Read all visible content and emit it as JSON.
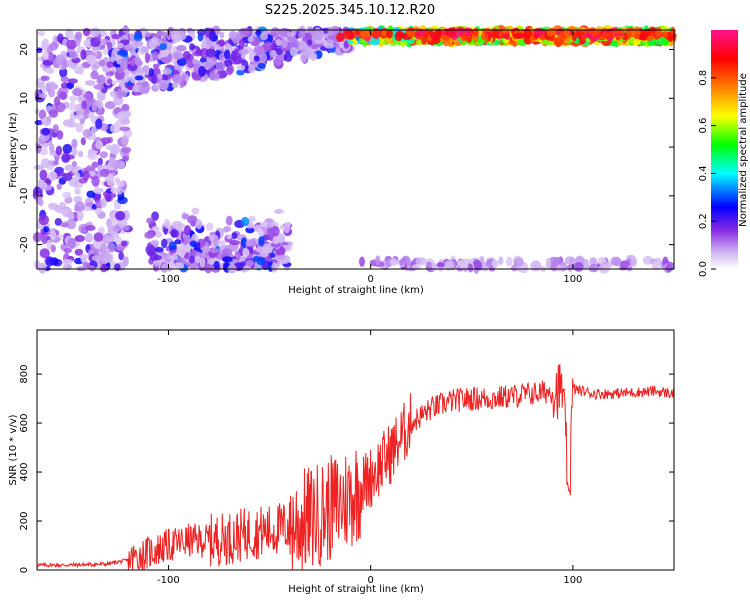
{
  "figure_title": "S225.2025.345.10.12.R20",
  "chart_data": [
    {
      "type": "heatmap",
      "title": "",
      "xlabel": "Height of straight line (km)",
      "ylabel": "Frequency (Hz)",
      "xlim": [
        -165,
        150
      ],
      "ylim": [
        -25,
        24
      ],
      "xticks": [
        -100,
        0,
        100
      ],
      "yticks": [
        -20,
        -10,
        0,
        10,
        20
      ],
      "colorbar": {
        "label": "Normalized spectral amplitude",
        "range": [
          0,
          1
        ],
        "ticks": [
          0.0,
          0.2,
          0.4,
          0.6,
          0.8
        ],
        "tick_labels": [
          "0.0",
          "0.2",
          "0.4",
          "0.6",
          "0.8"
        ],
        "colormap": [
          "#ffffff",
          "#8a2be2",
          "#0000ff",
          "#00ffff",
          "#00ff00",
          "#ffff00",
          "#ff7f00",
          "#ff0000",
          "#ff1493"
        ]
      },
      "features": [
        {
          "region": "strong band near top edge",
          "x": [
            -10,
            150
          ],
          "freq": [
            21,
            24
          ],
          "amplitude": 0.9
        },
        {
          "region": "scattered band upper-left",
          "x": [
            -125,
            -10
          ],
          "freq": [
            14,
            24
          ],
          "amplitude": 0.35
        },
        {
          "region": "band near bottom edge",
          "x": [
            -110,
            -40
          ],
          "freq": [
            -25,
            -16
          ],
          "amplitude": 0.3
        },
        {
          "region": "diffuse speckle left side",
          "x": [
            -165,
            -120
          ],
          "freq": [
            -25,
            24
          ],
          "amplitude": 0.12
        }
      ]
    },
    {
      "type": "line",
      "title": "",
      "xlabel": "Height of straight line (km)",
      "ylabel": "SNR (10 * v/v)",
      "xlim": [
        -165,
        150
      ],
      "ylim": [
        0,
        980
      ],
      "xticks": [
        -100,
        0,
        100
      ],
      "yticks": [
        0,
        200,
        400,
        600,
        800
      ],
      "line_color": "#ee2222",
      "series": [
        {
          "x": [
            -165,
            -150,
            -140,
            -130,
            -120,
            -110,
            -100,
            -90,
            -80,
            -70,
            -60,
            -50,
            -40,
            -30,
            -20,
            -10,
            0,
            10,
            20,
            30,
            40,
            50,
            60,
            70,
            80,
            90,
            95,
            98,
            100,
            105,
            110,
            120,
            130,
            140,
            150
          ],
          "values": [
            20,
            20,
            22,
            25,
            40,
            70,
            100,
            120,
            120,
            130,
            150,
            160,
            180,
            210,
            250,
            300,
            380,
            480,
            600,
            660,
            690,
            700,
            700,
            710,
            720,
            730,
            740,
            300,
            740,
            730,
            720,
            720,
            725,
            730,
            720
          ]
        }
      ]
    }
  ]
}
